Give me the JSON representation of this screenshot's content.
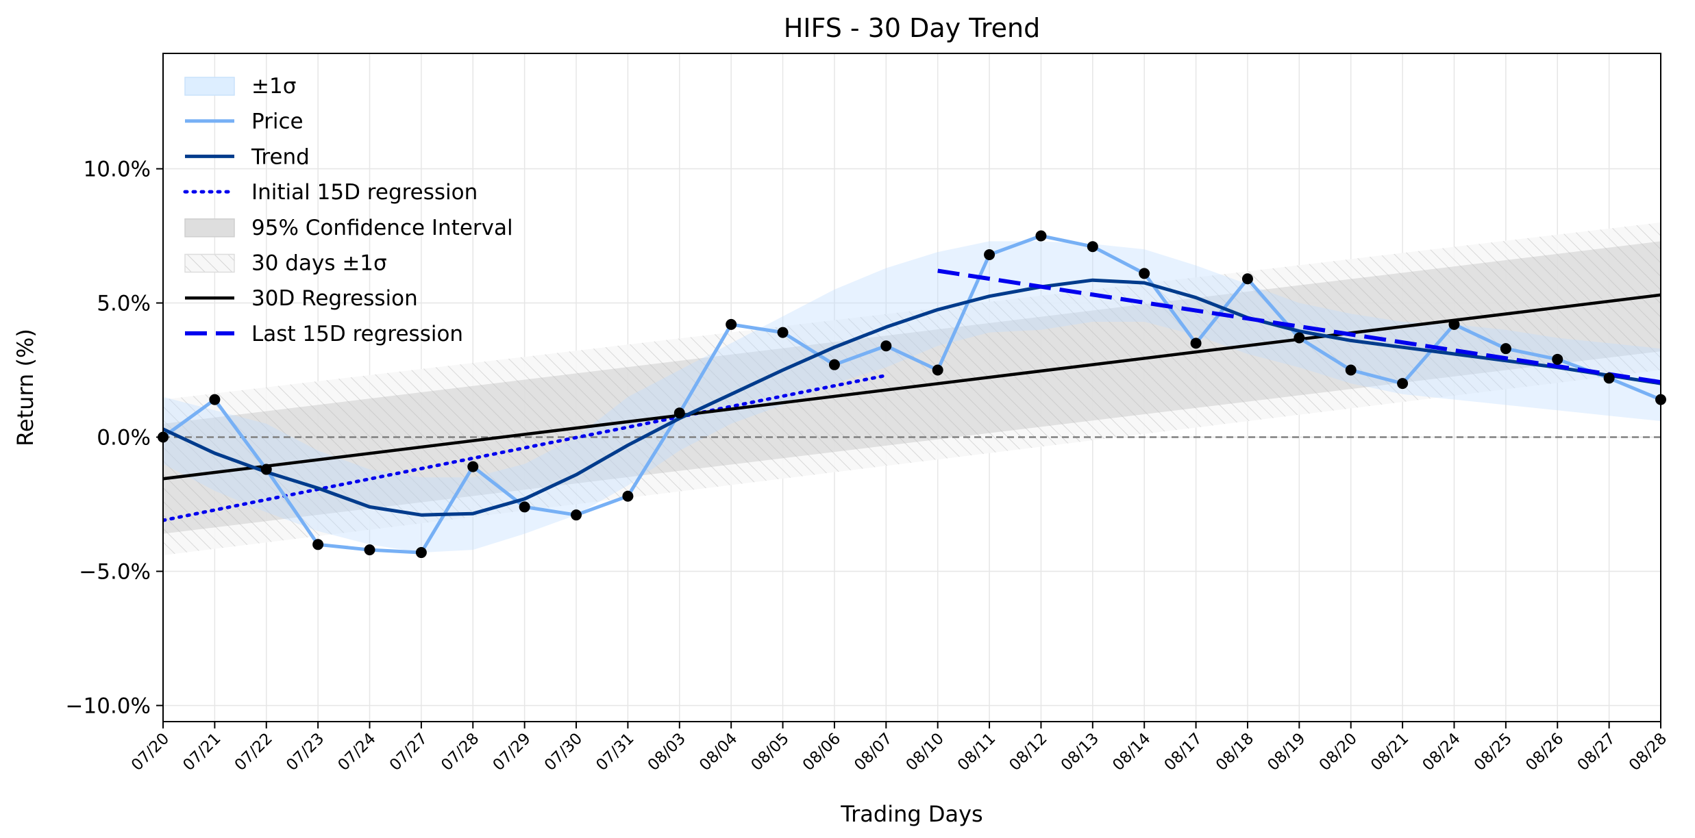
{
  "chart_data": {
    "type": "line",
    "title": "HIFS - 30 Day Trend",
    "xlabel": "Trading Days",
    "ylabel": "Return (%)",
    "categories": [
      "07/20",
      "07/21",
      "07/22",
      "07/23",
      "07/24",
      "07/27",
      "07/28",
      "07/29",
      "07/30",
      "07/31",
      "08/03",
      "08/04",
      "08/05",
      "08/06",
      "08/07",
      "08/10",
      "08/11",
      "08/12",
      "08/13",
      "08/14",
      "08/17",
      "08/18",
      "08/19",
      "08/20",
      "08/21",
      "08/24",
      "08/25",
      "08/26",
      "08/27",
      "08/28"
    ],
    "ylim": [
      -10.6,
      14.3
    ],
    "yticks": [
      -10,
      -5,
      0,
      5,
      10
    ],
    "ytick_labels": [
      "−10.0%",
      "−5.0%",
      "0.0%",
      "5.0%",
      "10.0%"
    ],
    "grid": true,
    "legend_position": "top-left",
    "zero_line": 0,
    "series": [
      {
        "name": "Price",
        "color": "#77B0F5",
        "values": [
          0.0,
          1.4,
          -1.2,
          -4.0,
          -4.2,
          -4.3,
          -1.1,
          -2.6,
          -2.9,
          -2.2,
          0.9,
          4.2,
          3.9,
          2.7,
          3.4,
          2.5,
          6.8,
          7.5,
          7.1,
          6.1,
          3.5,
          5.9,
          3.7,
          2.5,
          2.0,
          4.2,
          3.3,
          2.9,
          2.2,
          1.4
        ]
      },
      {
        "name": "Trend",
        "color": "#003B8C",
        "values": [
          0.3,
          -0.6,
          -1.3,
          -1.9,
          -2.6,
          -2.9,
          -2.85,
          -2.3,
          -1.4,
          -0.3,
          0.7,
          1.6,
          2.5,
          3.35,
          4.1,
          4.75,
          5.25,
          5.6,
          5.85,
          5.75,
          5.2,
          4.45,
          3.95,
          3.6,
          3.35,
          3.1,
          2.85,
          2.6,
          2.3,
          2.0
        ]
      },
      {
        "name": "±1σ",
        "color": "#DDEEFF",
        "upper": [
          1.5,
          1.0,
          0.5,
          -0.5,
          -1.2,
          -1.5,
          -1.5,
          -1.0,
          0.0,
          1.5,
          2.5,
          3.5,
          4.5,
          5.5,
          6.3,
          6.9,
          7.3,
          7.3,
          7.2,
          7.0,
          6.4,
          5.7,
          5.0,
          4.6,
          4.3,
          4.2,
          4.0,
          3.7,
          3.5,
          3.3
        ],
        "lower": [
          -1.0,
          -2.0,
          -2.8,
          -3.5,
          -4.0,
          -4.3,
          -4.2,
          -3.6,
          -2.9,
          -1.8,
          -0.5,
          0.5,
          1.2,
          2.0,
          2.6,
          3.4,
          3.9,
          4.0,
          4.3,
          4.3,
          3.8,
          3.1,
          2.6,
          2.0,
          1.6,
          1.4,
          1.2,
          1.0,
          0.8,
          0.6
        ]
      },
      {
        "name": "Initial 15D regression",
        "color": "#0000EE",
        "style": "dotted",
        "x": [
          0,
          14
        ],
        "y": [
          -3.1,
          2.3
        ]
      },
      {
        "name": "95% Confidence Interval",
        "color": "#DDDDDD",
        "upper": [
          0.5,
          7.3
        ],
        "lower": [
          -3.6,
          3.2
        ]
      },
      {
        "name": "30 days ±1σ",
        "color": "#EFEFEF",
        "style": "hatched",
        "upper": [
          1.4,
          8.0
        ],
        "lower": [
          -4.4,
          2.5
        ]
      },
      {
        "name": "30D Regression",
        "color": "#000000",
        "x": [
          0,
          29
        ],
        "y": [
          -1.55,
          5.3
        ]
      },
      {
        "name": "Last 15D regression",
        "color": "#0000EE",
        "style": "dashed",
        "x": [
          15,
          29
        ],
        "y": [
          6.2,
          2.05
        ]
      }
    ]
  }
}
